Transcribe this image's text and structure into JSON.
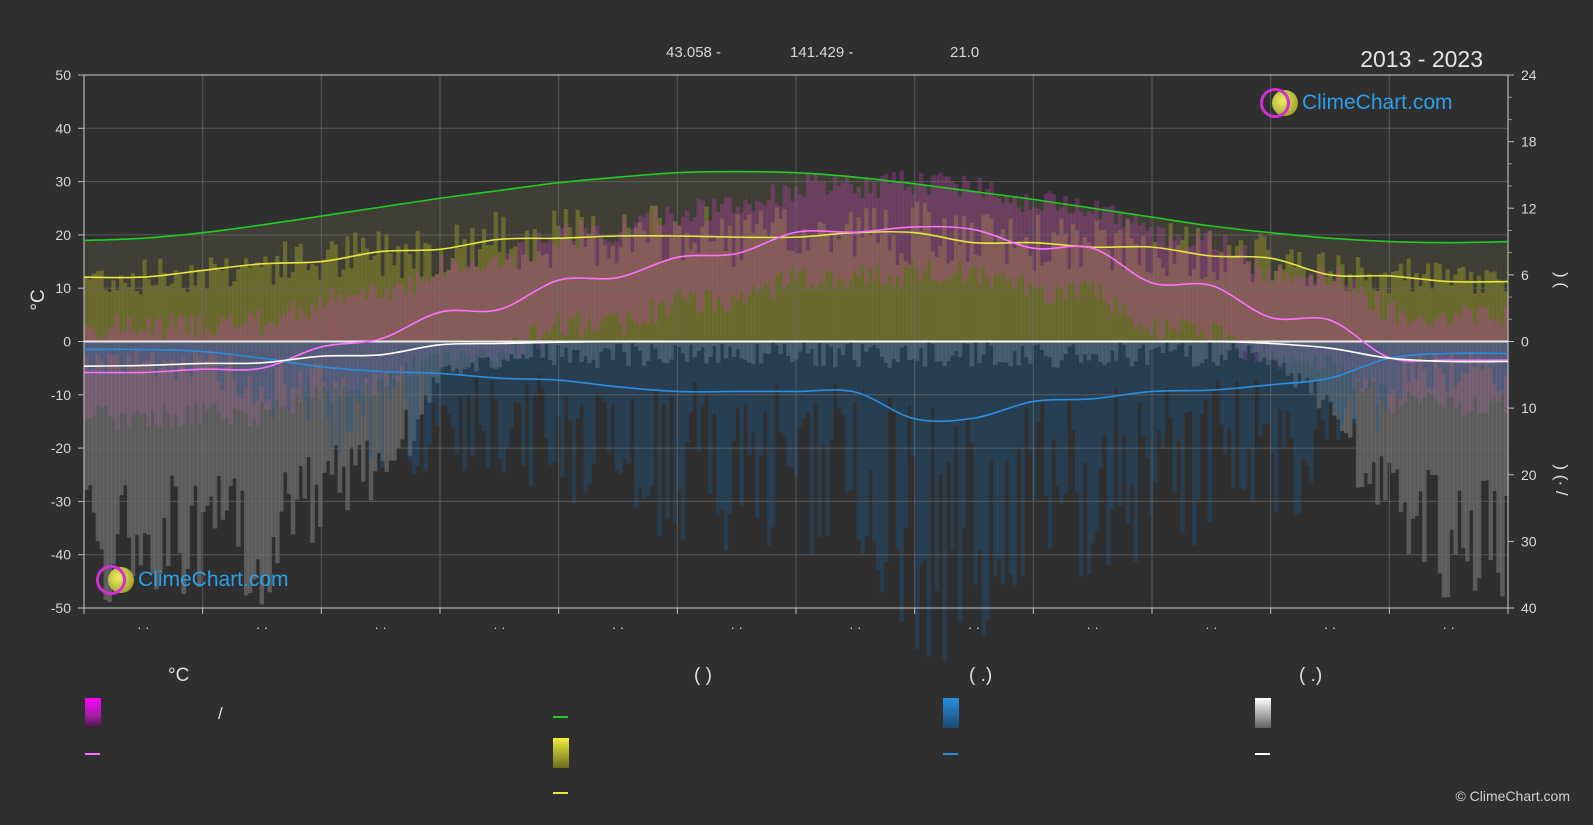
{
  "header": {
    "latitude": "43.058 -",
    "longitude": "141.429 -",
    "elevation": "21.0",
    "period": "2013 - 2023"
  },
  "logo": {
    "text": "ClimeChart.com"
  },
  "copyright": "© ClimeChart.com",
  "legend": {
    "col1": {
      "heading": "°C",
      "range_sep": "/"
    },
    "col2": {
      "heading": "(          )"
    },
    "col3": {
      "heading": "(   .)"
    },
    "col4": {
      "heading": "(   .)"
    }
  },
  "colors": {
    "temp": "#e040e0",
    "daylight": "#22cc22",
    "sunshine": "#e6e640",
    "rain": "#2a8ee0",
    "snow": "#ffffff",
    "background": "#2f2f2f"
  },
  "chart_data": {
    "type": "line",
    "x_months": 12,
    "left_axis": {
      "label": "°C",
      "min": -50,
      "max": 50,
      "ticks": [
        "50",
        "40",
        "30",
        "20",
        "10",
        "0",
        "-10",
        "-20",
        "-30",
        "-40",
        "-50"
      ]
    },
    "right_axis_top": {
      "label": ")   (",
      "min": 0,
      "max": 24,
      "ticks": [
        "24",
        "18",
        "12",
        "6",
        "0"
      ]
    },
    "right_axis_bottom": {
      "label": ")   (·   /",
      "min": 0,
      "max": 40,
      "ticks": [
        "10",
        "20",
        "30",
        "40"
      ]
    },
    "month_labels": [
      "· ·",
      "· ·",
      "· ·",
      "· ·",
      "· ·",
      "· ·",
      "· ·",
      "· ·",
      "· ·",
      "· ·",
      "· ·",
      "· ·"
    ],
    "series": [
      {
        "key": "daylight_hours",
        "axis": "hours",
        "x": [
          0,
          0.5,
          1,
          1.5,
          2,
          2.5,
          3,
          3.5,
          4,
          4.5,
          5,
          5.5,
          6,
          6.5,
          7,
          7.5,
          8,
          8.5,
          9,
          9.5,
          10,
          10.5,
          11,
          11.5,
          12
        ],
        "values": [
          9.1,
          9.3,
          9.8,
          10.5,
          11.3,
          12.1,
          12.9,
          13.6,
          14.3,
          14.8,
          15.2,
          15.3,
          15.2,
          14.8,
          14.2,
          13.5,
          12.8,
          12.0,
          11.2,
          10.4,
          9.8,
          9.3,
          9.0,
          8.9,
          9.0
        ]
      },
      {
        "key": "sunshine_hours",
        "axis": "hours",
        "x": [
          0,
          0.5,
          1,
          1.5,
          2,
          2.5,
          3,
          3.5,
          4,
          4.5,
          5,
          5.5,
          6,
          6.5,
          7,
          7.5,
          8,
          8.5,
          9,
          9.5,
          10,
          10.5,
          11,
          11.5,
          12
        ],
        "values": [
          5.8,
          5.8,
          6.4,
          7.0,
          7.2,
          8.1,
          8.3,
          9.2,
          9.3,
          9.5,
          9.5,
          9.4,
          9.4,
          9.8,
          9.8,
          8.9,
          8.9,
          8.5,
          8.5,
          7.7,
          7.5,
          6.0,
          5.9,
          5.4,
          5.4
        ]
      },
      {
        "key": "avg_temp",
        "axis": "temp",
        "x": [
          0,
          0.5,
          1,
          1.5,
          2,
          2.5,
          3,
          3.5,
          4,
          4.5,
          5,
          5.5,
          6,
          6.5,
          7,
          7.5,
          8,
          8.5,
          9,
          9.5,
          10,
          10.5,
          11,
          11.5,
          12
        ],
        "values": [
          -5.8,
          -5.8,
          -5.2,
          -5.0,
          -1.0,
          0.5,
          5.5,
          6.0,
          11.5,
          12.0,
          15.8,
          16.5,
          20.5,
          20.5,
          21.5,
          21.0,
          17.5,
          17.5,
          11.0,
          10.5,
          4.5,
          4.0,
          -3.0,
          -3.5,
          -3.5
        ]
      },
      {
        "key": "rain_mm",
        "axis": "mm",
        "x": [
          0,
          0.5,
          1,
          1.5,
          2,
          2.5,
          3,
          3.5,
          4,
          4.5,
          5,
          5.5,
          6,
          6.5,
          7,
          7.5,
          8,
          8.5,
          9,
          9.5,
          10,
          10.5,
          11,
          11.5,
          12
        ],
        "values": [
          1.2,
          1.2,
          1.5,
          2.5,
          3.8,
          4.5,
          4.8,
          5.5,
          5.8,
          6.8,
          7.5,
          7.5,
          7.5,
          7.6,
          11.6,
          11.5,
          9.0,
          8.6,
          7.5,
          7.3,
          6.5,
          5.5,
          2.5,
          1.8,
          1.8
        ]
      },
      {
        "key": "snow_cm",
        "axis": "mm",
        "x": [
          0,
          0.5,
          1,
          1.5,
          2,
          2.5,
          3,
          3.5,
          4,
          4.5,
          5,
          5.5,
          6,
          6.5,
          7,
          7.5,
          8,
          8.5,
          9,
          9.5,
          10,
          10.5,
          11,
          11.5,
          12
        ],
        "values": [
          3.7,
          3.6,
          3.3,
          3.2,
          2.2,
          2.0,
          0.5,
          0.3,
          0.1,
          0,
          0,
          0,
          0,
          0,
          0,
          0,
          0,
          0,
          0,
          0,
          0.3,
          1.0,
          2.5,
          3.0,
          3.0
        ]
      }
    ],
    "grid": true
  }
}
